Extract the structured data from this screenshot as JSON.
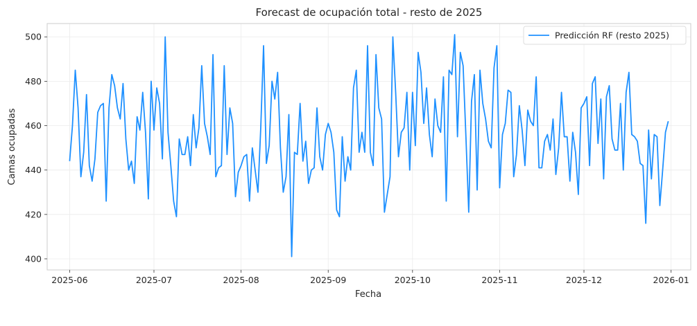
{
  "chart_data": {
    "type": "line",
    "title": "Forecast de ocupación total - resto de 2025",
    "xlabel": "Fecha",
    "ylabel": "Camas ocupadas",
    "x_tick_labels": [
      "2025-06",
      "2025-07",
      "2025-08",
      "2025-09",
      "2025-10",
      "2025-11",
      "2025-12",
      "2026-01"
    ],
    "y_ticks": [
      400,
      420,
      440,
      460,
      480,
      500
    ],
    "xlim": [
      "2025-05-24",
      "2026-01-08"
    ],
    "ylim": [
      395,
      506
    ],
    "grid": true,
    "legend_position": "top-right",
    "x_start": "2025-06-01",
    "x_end": "2025-12-31",
    "series": [
      {
        "name": "Predicción RF (resto 2025)",
        "color": "#1e90ff",
        "values": [
          444,
          460,
          485,
          468,
          437,
          448,
          474,
          442,
          435,
          445,
          466,
          469,
          470,
          426,
          468,
          483,
          478,
          468,
          463,
          479,
          454,
          440,
          444,
          434,
          464,
          458,
          475,
          457,
          427,
          480,
          458,
          477,
          470,
          445,
          500,
          457,
          442,
          426,
          419,
          454,
          447,
          447,
          455,
          442,
          465,
          450,
          459,
          487,
          461,
          455,
          447,
          492,
          437,
          441,
          442,
          487,
          447,
          468,
          461,
          428,
          439,
          442,
          446,
          447,
          426,
          450,
          440,
          430,
          459,
          496,
          443,
          451,
          480,
          472,
          484,
          450,
          430,
          437,
          465,
          401,
          448,
          447,
          470,
          444,
          453,
          434,
          440,
          441,
          468,
          446,
          440,
          456,
          461,
          457,
          448,
          422,
          419,
          455,
          435,
          446,
          440,
          477,
          485,
          448,
          457,
          448,
          496,
          448,
          442,
          492,
          468,
          463,
          421,
          429,
          437,
          500,
          475,
          446,
          457,
          459,
          475,
          440,
          475,
          451,
          493,
          484,
          461,
          477,
          456,
          446,
          472,
          460,
          457,
          482,
          426,
          485,
          483,
          501,
          455,
          493,
          487,
          455,
          421,
          471,
          483,
          431,
          485,
          470,
          463,
          453,
          450,
          486,
          496,
          432,
          456,
          461,
          476,
          475,
          437,
          447,
          469,
          458,
          442,
          467,
          462,
          460,
          482,
          441,
          441,
          453,
          456,
          449,
          463,
          438,
          450,
          475,
          455,
          455,
          435,
          457,
          448,
          429,
          468,
          470,
          473,
          442,
          479,
          482,
          452,
          472,
          436,
          473,
          478,
          454,
          449,
          449,
          470,
          440,
          475,
          484,
          456,
          455,
          453,
          443,
          442,
          416,
          458,
          436,
          456,
          455,
          424,
          440,
          457,
          462
        ]
      }
    ]
  }
}
